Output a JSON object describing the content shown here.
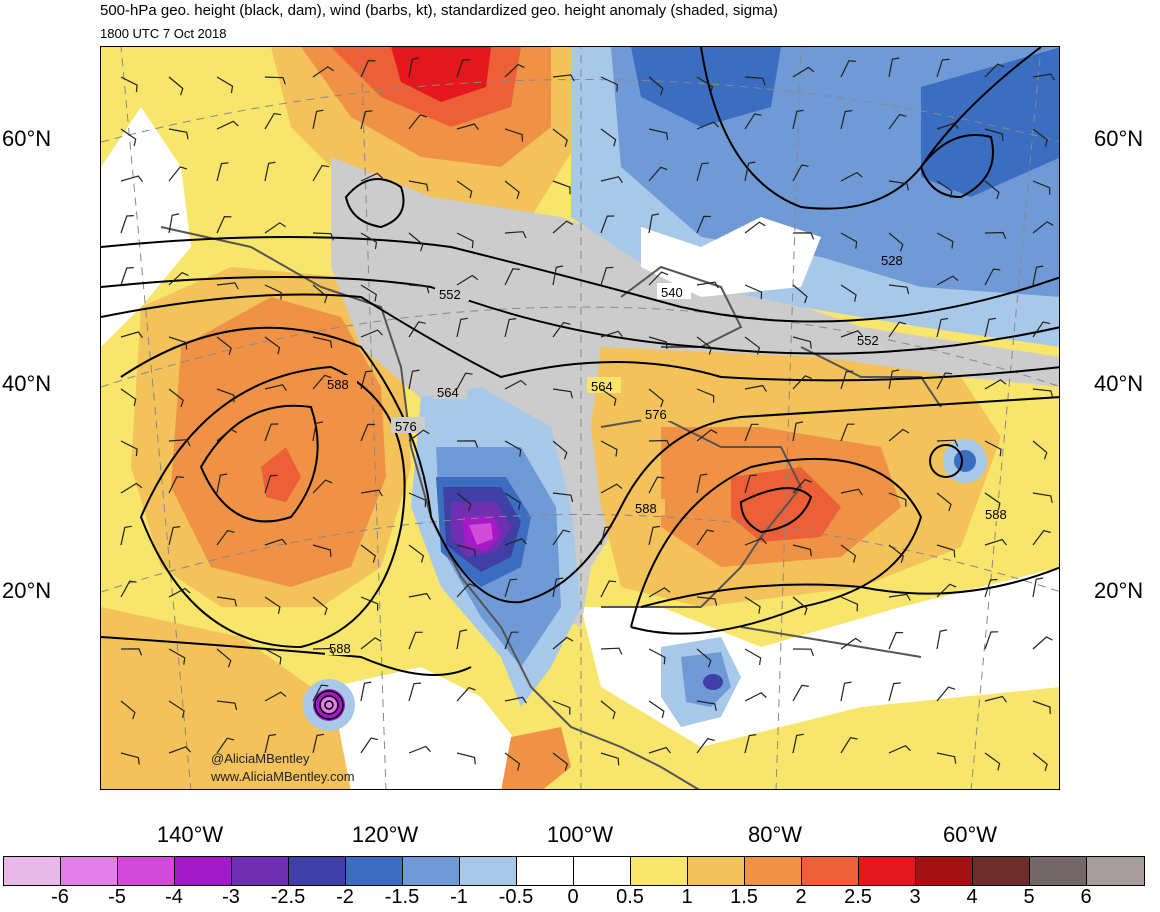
{
  "header": {
    "title": "500-hPa geo. height (black, dam), wind (barbs, kt), standardized geo. height anomaly (shaded, sigma)",
    "valid_time": "1800 UTC 7 Oct 2018"
  },
  "map": {
    "lat_labels": [
      "60°N",
      "40°N",
      "20°N"
    ],
    "lon_labels": [
      "140°W",
      "120°W",
      "100°W",
      "80°W",
      "60°W"
    ],
    "contour_labels": [
      "528",
      "540",
      "552",
      "552",
      "564",
      "564",
      "576",
      "576",
      "588",
      "588",
      "588",
      "588"
    ],
    "credit_handle": "@AliciaMBentley",
    "credit_url": "www.AliciaMBentley.com"
  },
  "colorbar": {
    "labels": [
      "-6",
      "-5",
      "-4",
      "-3",
      "-2.5",
      "-2",
      "-1.5",
      "-1",
      "-0.5",
      "0",
      "0.5",
      "1",
      "1.5",
      "2",
      "2.5",
      "3",
      "4",
      "5",
      "6"
    ],
    "colors": [
      "#e8b9e8",
      "#e37fe6",
      "#d24ad8",
      "#a31bc9",
      "#6f2fb0",
      "#3f3fa6",
      "#3b6dc0",
      "#6f9ad6",
      "#a8c8ea",
      "#ffffff",
      "#ffffff",
      "#f8e56b",
      "#f3c25a",
      "#f09246",
      "#ec5f37",
      "#e3171c",
      "#a31113",
      "#6e2c2c",
      "#746767",
      "#a89d9d"
    ]
  }
}
